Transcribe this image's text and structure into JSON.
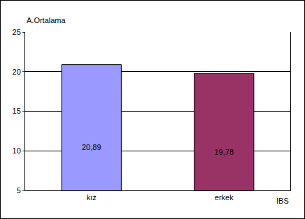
{
  "chart_data": {
    "type": "bar",
    "y_label": "A.Ortalama",
    "x_label": "İBS",
    "categories": [
      "kız",
      "erkek"
    ],
    "values": [
      20.89,
      19.78
    ],
    "value_labels": [
      "20,89",
      "19,78"
    ],
    "colors": [
      "#9999ff",
      "#993366"
    ],
    "ylim": [
      5,
      25
    ],
    "yticks": [
      5,
      10,
      15,
      20,
      25
    ],
    "grid": true,
    "data_labels": true
  }
}
